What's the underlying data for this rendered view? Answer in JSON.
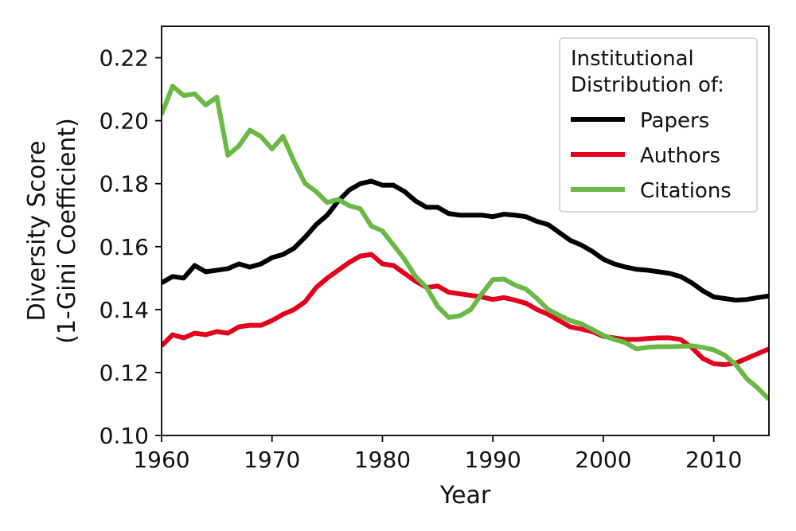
{
  "chart_data": {
    "type": "line",
    "xlabel": "Year",
    "ylabel_line1": "Diversity Score",
    "ylabel_line2": "(1-Gini Coefficient)",
    "xlim": [
      1960,
      2015
    ],
    "ylim": [
      0.1,
      0.23
    ],
    "xticks": [
      1960,
      1970,
      1980,
      1990,
      2000,
      2010
    ],
    "xtick_labels": [
      "1960",
      "1970",
      "1980",
      "1990",
      "2000",
      "2010"
    ],
    "yticks": [
      0.1,
      0.12,
      0.14,
      0.16,
      0.18,
      0.2,
      0.22
    ],
    "ytick_labels": [
      "0.10",
      "0.12",
      "0.14",
      "0.16",
      "0.18",
      "0.20",
      "0.22"
    ],
    "grid": false,
    "legend_placement": "top-right",
    "legend_title_line1": "Institutional",
    "legend_title_line2": "Distribution of:",
    "series": [
      {
        "name": "Papers",
        "color": "#000000",
        "x": [
          1960,
          1961,
          1962,
          1963,
          1964,
          1965,
          1966,
          1967,
          1968,
          1969,
          1970,
          1971,
          1972,
          1973,
          1974,
          1975,
          1976,
          1977,
          1978,
          1979,
          1980,
          1981,
          1982,
          1983,
          1984,
          1985,
          1986,
          1987,
          1988,
          1989,
          1990,
          1991,
          1992,
          1993,
          1994,
          1995,
          1996,
          1997,
          1998,
          1999,
          2000,
          2001,
          2002,
          2003,
          2004,
          2005,
          2006,
          2007,
          2008,
          2009,
          2010,
          2011,
          2012,
          2013,
          2014,
          2015
        ],
        "y": [
          0.1485,
          0.1505,
          0.15,
          0.154,
          0.152,
          0.1525,
          0.153,
          0.1545,
          0.1535,
          0.1545,
          0.1565,
          0.1575,
          0.1595,
          0.163,
          0.167,
          0.17,
          0.1745,
          0.178,
          0.18,
          0.1808,
          0.1795,
          0.1795,
          0.1775,
          0.1745,
          0.1725,
          0.1725,
          0.1705,
          0.17,
          0.17,
          0.17,
          0.1695,
          0.1703,
          0.17,
          0.1695,
          0.168,
          0.167,
          0.1645,
          0.162,
          0.1605,
          0.1585,
          0.156,
          0.1545,
          0.1535,
          0.1528,
          0.1525,
          0.152,
          0.1515,
          0.1505,
          0.1485,
          0.146,
          0.144,
          0.1435,
          0.143,
          0.1432,
          0.1438,
          0.1443
        ]
      },
      {
        "name": "Authors",
        "color": "#e3001b",
        "x": [
          1960,
          1961,
          1962,
          1963,
          1964,
          1965,
          1966,
          1967,
          1968,
          1969,
          1970,
          1971,
          1972,
          1973,
          1974,
          1975,
          1976,
          1977,
          1978,
          1979,
          1980,
          1981,
          1982,
          1983,
          1984,
          1985,
          1986,
          1987,
          1988,
          1989,
          1990,
          1991,
          1992,
          1993,
          1994,
          1995,
          1996,
          1997,
          1998,
          1999,
          2000,
          2001,
          2002,
          2003,
          2004,
          2005,
          2006,
          2007,
          2008,
          2009,
          2010,
          2011,
          2012,
          2013,
          2014,
          2015
        ],
        "y": [
          0.1285,
          0.132,
          0.131,
          0.1325,
          0.132,
          0.133,
          0.1325,
          0.1345,
          0.135,
          0.135,
          0.1365,
          0.1385,
          0.14,
          0.1425,
          0.147,
          0.15,
          0.1525,
          0.155,
          0.157,
          0.1575,
          0.1545,
          0.154,
          0.1515,
          0.149,
          0.147,
          0.1475,
          0.1455,
          0.145,
          0.1445,
          0.144,
          0.1432,
          0.1438,
          0.143,
          0.142,
          0.14,
          0.1385,
          0.1365,
          0.1345,
          0.1338,
          0.133,
          0.1315,
          0.131,
          0.1305,
          0.1305,
          0.1308,
          0.131,
          0.131,
          0.1305,
          0.128,
          0.1245,
          0.1228,
          0.1225,
          0.123,
          0.1245,
          0.126,
          0.1275
        ]
      },
      {
        "name": "Citations",
        "color": "#6ab946",
        "x": [
          1960,
          1961,
          1962,
          1963,
          1964,
          1965,
          1966,
          1967,
          1968,
          1969,
          1970,
          1971,
          1972,
          1973,
          1974,
          1975,
          1976,
          1977,
          1978,
          1979,
          1980,
          1981,
          1982,
          1983,
          1984,
          1985,
          1986,
          1987,
          1988,
          1989,
          1990,
          1991,
          1992,
          1993,
          1994,
          1995,
          1996,
          1997,
          1998,
          1999,
          2000,
          2001,
          2002,
          2003,
          2004,
          2005,
          2006,
          2007,
          2008,
          2009,
          2010,
          2011,
          2012,
          2013,
          2014,
          2015
        ],
        "y": [
          0.202,
          0.211,
          0.208,
          0.2085,
          0.205,
          0.2075,
          0.189,
          0.192,
          0.197,
          0.195,
          0.191,
          0.195,
          0.187,
          0.18,
          0.1775,
          0.174,
          0.175,
          0.173,
          0.172,
          0.1665,
          0.165,
          0.1605,
          0.156,
          0.1505,
          0.147,
          0.141,
          0.1375,
          0.138,
          0.14,
          0.145,
          0.1495,
          0.1497,
          0.1478,
          0.1465,
          0.1435,
          0.14,
          0.1382,
          0.1365,
          0.1355,
          0.1337,
          0.1318,
          0.1305,
          0.1295,
          0.1275,
          0.128,
          0.1282,
          0.1282,
          0.1283,
          0.1285,
          0.128,
          0.1272,
          0.1255,
          0.1225,
          0.118,
          0.115,
          0.1115
        ]
      }
    ]
  }
}
